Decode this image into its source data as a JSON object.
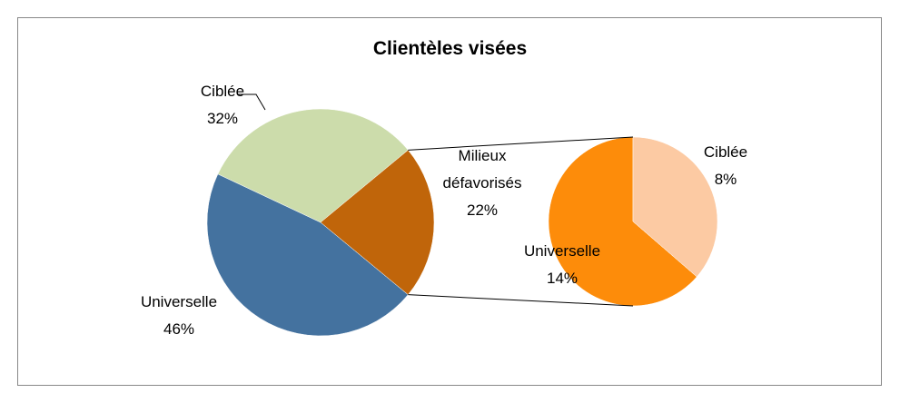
{
  "chart_data": {
    "type": "pie-of-pie",
    "title": "Clientèles visées",
    "categories": [
      "Universelle",
      "Ciblée",
      "Milieux défavorisés"
    ],
    "values": [
      46,
      32,
      22
    ],
    "value_labels": [
      "46%",
      "32%",
      "22%"
    ],
    "colors": [
      "#44729f",
      "#ccdcab",
      "#c0650a"
    ],
    "secondary": {
      "categories": [
        "Universelle",
        "Ciblée"
      ],
      "values": [
        14,
        8
      ],
      "value_labels": [
        "14%",
        "8%"
      ],
      "colors": [
        "#fd8c0a",
        "#fccaa3"
      ]
    }
  }
}
